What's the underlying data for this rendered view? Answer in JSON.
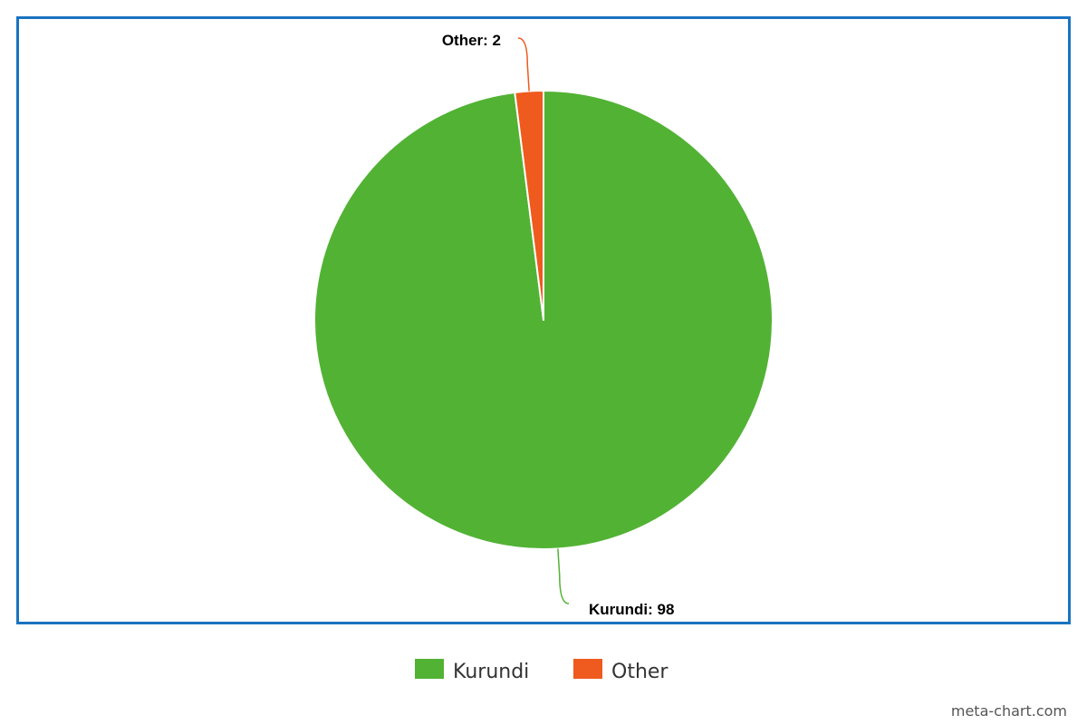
{
  "chart_data": {
    "type": "pie",
    "title": "",
    "slices": [
      {
        "name": "Kurundi",
        "value": 98,
        "label": "Kurundi: 98",
        "color": "#52b234"
      },
      {
        "name": "Other",
        "value": 2,
        "label": "Other: 2",
        "color": "#ef5a1e"
      }
    ],
    "legend": {
      "placement": "bottom-center",
      "items": [
        "Kurundi",
        "Other"
      ]
    },
    "start_angle_deg": 0,
    "direction": "clockwise",
    "frame_color": "#1a73c0"
  },
  "footer": {
    "watermark": "meta-chart.com"
  }
}
